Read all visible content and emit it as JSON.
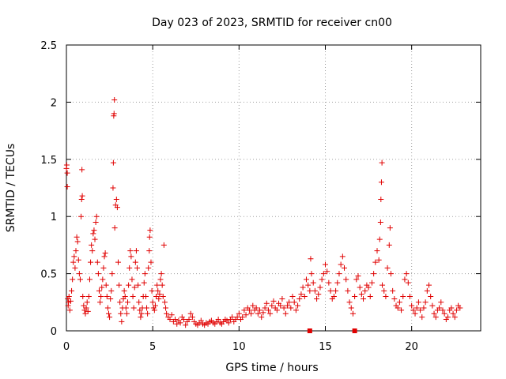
{
  "chart_data": {
    "type": "scatter",
    "title": "Day 023 of 2023, SRMTID for receiver cn00",
    "xlabel": "GPS time / hours",
    "ylabel": "SRMTID / TECUs",
    "xlim": [
      0,
      24
    ],
    "ylim": [
      0,
      2.5
    ],
    "xticks": [
      0,
      5,
      10,
      15,
      20
    ],
    "yticks": [
      0,
      0.5,
      1,
      1.5,
      2,
      2.5
    ],
    "xtick_labels": [
      "0",
      "5",
      "10",
      "15",
      "20"
    ],
    "ytick_labels": [
      "0",
      "0.5",
      "1",
      "1.5",
      "2",
      "2.5"
    ],
    "grid": true,
    "marker": "+",
    "color": "#e00000",
    "series": [
      {
        "name": "SRMTID",
        "points": [
          [
            0.0,
            1.42
          ],
          [
            0.02,
            1.45
          ],
          [
            0.05,
            1.26
          ],
          [
            0.05,
            1.38
          ],
          [
            0.08,
            0.28
          ],
          [
            0.1,
            0.22
          ],
          [
            0.12,
            0.25
          ],
          [
            0.15,
            0.3
          ],
          [
            0.2,
            0.18
          ],
          [
            0.25,
            0.26
          ],
          [
            0.3,
            0.35
          ],
          [
            0.35,
            0.45
          ],
          [
            0.4,
            0.6
          ],
          [
            0.45,
            0.65
          ],
          [
            0.5,
            0.55
          ],
          [
            0.55,
            0.7
          ],
          [
            0.6,
            0.82
          ],
          [
            0.65,
            0.78
          ],
          [
            0.7,
            0.62
          ],
          [
            0.75,
            0.5
          ],
          [
            0.8,
            0.45
          ],
          [
            0.85,
            1.0
          ],
          [
            0.88,
            1.15
          ],
          [
            0.9,
            1.41
          ],
          [
            0.92,
            1.18
          ],
          [
            0.95,
            0.3
          ],
          [
            1.0,
            0.22
          ],
          [
            1.05,
            0.18
          ],
          [
            1.1,
            0.15
          ],
          [
            1.15,
            0.2
          ],
          [
            1.2,
            0.25
          ],
          [
            1.25,
            0.17
          ],
          [
            1.3,
            0.3
          ],
          [
            1.35,
            0.45
          ],
          [
            1.4,
            0.6
          ],
          [
            1.45,
            0.75
          ],
          [
            1.5,
            0.7
          ],
          [
            1.55,
            0.85
          ],
          [
            1.6,
            0.88
          ],
          [
            1.65,
            0.8
          ],
          [
            1.7,
            0.95
          ],
          [
            1.75,
            1.0
          ],
          [
            1.8,
            0.6
          ],
          [
            1.85,
            0.5
          ],
          [
            1.9,
            0.35
          ],
          [
            1.95,
            0.25
          ],
          [
            2.0,
            0.3
          ],
          [
            2.05,
            0.38
          ],
          [
            2.1,
            0.45
          ],
          [
            2.15,
            0.55
          ],
          [
            2.2,
            0.65
          ],
          [
            2.25,
            0.68
          ],
          [
            2.3,
            0.4
          ],
          [
            2.35,
            0.3
          ],
          [
            2.4,
            0.2
          ],
          [
            2.45,
            0.15
          ],
          [
            2.5,
            0.12
          ],
          [
            2.55,
            0.28
          ],
          [
            2.6,
            0.35
          ],
          [
            2.65,
            0.5
          ],
          [
            2.7,
            1.25
          ],
          [
            2.72,
            1.47
          ],
          [
            2.74,
            1.88
          ],
          [
            2.76,
            1.9
          ],
          [
            2.78,
            2.02
          ],
          [
            2.8,
            0.9
          ],
          [
            2.85,
            1.1
          ],
          [
            2.9,
            1.15
          ],
          [
            2.95,
            1.08
          ],
          [
            3.0,
            0.6
          ],
          [
            3.05,
            0.4
          ],
          [
            3.1,
            0.25
          ],
          [
            3.15,
            0.15
          ],
          [
            3.2,
            0.08
          ],
          [
            3.25,
            0.2
          ],
          [
            3.3,
            0.28
          ],
          [
            3.35,
            0.35
          ],
          [
            3.4,
            0.3
          ],
          [
            3.45,
            0.2
          ],
          [
            3.5,
            0.15
          ],
          [
            3.55,
            0.25
          ],
          [
            3.6,
            0.4
          ],
          [
            3.65,
            0.55
          ],
          [
            3.7,
            0.7
          ],
          [
            3.75,
            0.65
          ],
          [
            3.8,
            0.45
          ],
          [
            3.85,
            0.3
          ],
          [
            3.9,
            0.2
          ],
          [
            3.95,
            0.38
          ],
          [
            4.0,
            0.6
          ],
          [
            4.05,
            0.7
          ],
          [
            4.1,
            0.55
          ],
          [
            4.15,
            0.4
          ],
          [
            4.2,
            0.25
          ],
          [
            4.25,
            0.18
          ],
          [
            4.3,
            0.12
          ],
          [
            4.35,
            0.15
          ],
          [
            4.4,
            0.2
          ],
          [
            4.45,
            0.3
          ],
          [
            4.5,
            0.42
          ],
          [
            4.55,
            0.5
          ],
          [
            4.6,
            0.3
          ],
          [
            4.65,
            0.2
          ],
          [
            4.7,
            0.15
          ],
          [
            4.75,
            0.55
          ],
          [
            4.8,
            0.7
          ],
          [
            4.82,
            0.82
          ],
          [
            4.85,
            0.88
          ],
          [
            4.9,
            0.6
          ],
          [
            4.95,
            0.35
          ],
          [
            5.0,
            0.25
          ],
          [
            5.05,
            0.2
          ],
          [
            5.1,
            0.18
          ],
          [
            5.15,
            0.22
          ],
          [
            5.2,
            0.3
          ],
          [
            5.25,
            0.4
          ],
          [
            5.3,
            0.35
          ],
          [
            5.35,
            0.28
          ],
          [
            5.4,
            0.32
          ],
          [
            5.45,
            0.45
          ],
          [
            5.5,
            0.5
          ],
          [
            5.55,
            0.4
          ],
          [
            5.6,
            0.3
          ],
          [
            5.65,
            0.75
          ],
          [
            5.7,
            0.25
          ],
          [
            5.75,
            0.2
          ],
          [
            5.8,
            0.15
          ],
          [
            5.9,
            0.12
          ],
          [
            6.0,
            0.1
          ],
          [
            6.1,
            0.14
          ],
          [
            6.2,
            0.08
          ],
          [
            6.3,
            0.1
          ],
          [
            6.4,
            0.06
          ],
          [
            6.5,
            0.09
          ],
          [
            6.6,
            0.07
          ],
          [
            6.7,
            0.12
          ],
          [
            6.8,
            0.1
          ],
          [
            6.9,
            0.05
          ],
          [
            7.0,
            0.08
          ],
          [
            7.1,
            0.1
          ],
          [
            7.2,
            0.15
          ],
          [
            7.3,
            0.12
          ],
          [
            7.4,
            0.08
          ],
          [
            7.5,
            0.06
          ],
          [
            7.6,
            0.05
          ],
          [
            7.7,
            0.07
          ],
          [
            7.8,
            0.09
          ],
          [
            7.9,
            0.06
          ],
          [
            8.0,
            0.05
          ],
          [
            8.1,
            0.07
          ],
          [
            8.2,
            0.06
          ],
          [
            8.3,
            0.08
          ],
          [
            8.4,
            0.09
          ],
          [
            8.5,
            0.07
          ],
          [
            8.6,
            0.06
          ],
          [
            8.7,
            0.08
          ],
          [
            8.8,
            0.1
          ],
          [
            8.9,
            0.07
          ],
          [
            9.0,
            0.06
          ],
          [
            9.1,
            0.08
          ],
          [
            9.2,
            0.1
          ],
          [
            9.3,
            0.09
          ],
          [
            9.4,
            0.07
          ],
          [
            9.5,
            0.1
          ],
          [
            9.6,
            0.12
          ],
          [
            9.7,
            0.08
          ],
          [
            9.8,
            0.1
          ],
          [
            9.9,
            0.12
          ],
          [
            10.0,
            0.15
          ],
          [
            10.1,
            0.1
          ],
          [
            10.2,
            0.12
          ],
          [
            10.3,
            0.18
          ],
          [
            10.4,
            0.14
          ],
          [
            10.5,
            0.2
          ],
          [
            10.6,
            0.18
          ],
          [
            10.7,
            0.15
          ],
          [
            10.8,
            0.22
          ],
          [
            10.9,
            0.18
          ],
          [
            11.0,
            0.2
          ],
          [
            11.1,
            0.15
          ],
          [
            11.2,
            0.18
          ],
          [
            11.3,
            0.12
          ],
          [
            11.4,
            0.16
          ],
          [
            11.5,
            0.2
          ],
          [
            11.6,
            0.24
          ],
          [
            11.7,
            0.18
          ],
          [
            11.8,
            0.15
          ],
          [
            11.9,
            0.22
          ],
          [
            12.0,
            0.26
          ],
          [
            12.1,
            0.2
          ],
          [
            12.2,
            0.18
          ],
          [
            12.3,
            0.24
          ],
          [
            12.4,
            0.22
          ],
          [
            12.5,
            0.28
          ],
          [
            12.6,
            0.2
          ],
          [
            12.7,
            0.15
          ],
          [
            12.8,
            0.22
          ],
          [
            12.9,
            0.25
          ],
          [
            13.0,
            0.2
          ],
          [
            13.1,
            0.3
          ],
          [
            13.2,
            0.25
          ],
          [
            13.3,
            0.18
          ],
          [
            13.4,
            0.22
          ],
          [
            13.5,
            0.28
          ],
          [
            13.6,
            0.32
          ],
          [
            13.7,
            0.38
          ],
          [
            13.8,
            0.3
          ],
          [
            13.9,
            0.45
          ],
          [
            14.0,
            0.4
          ],
          [
            14.1,
            0.35
          ],
          [
            14.15,
            0.63
          ],
          [
            14.2,
            0.5
          ],
          [
            14.3,
            0.42
          ],
          [
            14.4,
            0.35
          ],
          [
            14.5,
            0.28
          ],
          [
            14.6,
            0.32
          ],
          [
            14.7,
            0.38
          ],
          [
            14.8,
            0.45
          ],
          [
            14.9,
            0.5
          ],
          [
            15.0,
            0.58
          ],
          [
            15.1,
            0.52
          ],
          [
            15.2,
            0.42
          ],
          [
            15.3,
            0.35
          ],
          [
            15.4,
            0.28
          ],
          [
            15.5,
            0.3
          ],
          [
            15.6,
            0.35
          ],
          [
            15.7,
            0.42
          ],
          [
            15.8,
            0.5
          ],
          [
            15.9,
            0.58
          ],
          [
            16.0,
            0.65
          ],
          [
            16.1,
            0.55
          ],
          [
            16.2,
            0.45
          ],
          [
            16.3,
            0.35
          ],
          [
            16.4,
            0.25
          ],
          [
            16.5,
            0.2
          ],
          [
            16.6,
            0.15
          ],
          [
            16.7,
            0.3
          ],
          [
            16.8,
            0.45
          ],
          [
            16.9,
            0.48
          ],
          [
            17.0,
            0.38
          ],
          [
            17.1,
            0.32
          ],
          [
            17.2,
            0.28
          ],
          [
            17.3,
            0.35
          ],
          [
            17.4,
            0.4
          ],
          [
            17.5,
            0.38
          ],
          [
            17.6,
            0.3
          ],
          [
            17.7,
            0.42
          ],
          [
            17.8,
            0.5
          ],
          [
            17.9,
            0.6
          ],
          [
            18.0,
            0.7
          ],
          [
            18.1,
            0.62
          ],
          [
            18.15,
            0.8
          ],
          [
            18.2,
            0.95
          ],
          [
            18.22,
            1.15
          ],
          [
            18.25,
            1.3
          ],
          [
            18.28,
            1.47
          ],
          [
            18.3,
            0.4
          ],
          [
            18.4,
            0.35
          ],
          [
            18.5,
            0.3
          ],
          [
            18.6,
            0.55
          ],
          [
            18.7,
            0.75
          ],
          [
            18.75,
            0.9
          ],
          [
            18.8,
            0.5
          ],
          [
            18.9,
            0.35
          ],
          [
            19.0,
            0.28
          ],
          [
            19.1,
            0.22
          ],
          [
            19.2,
            0.2
          ],
          [
            19.3,
            0.25
          ],
          [
            19.4,
            0.18
          ],
          [
            19.5,
            0.3
          ],
          [
            19.6,
            0.45
          ],
          [
            19.7,
            0.5
          ],
          [
            19.8,
            0.42
          ],
          [
            19.9,
            0.3
          ],
          [
            20.0,
            0.22
          ],
          [
            20.1,
            0.18
          ],
          [
            20.2,
            0.15
          ],
          [
            20.3,
            0.2
          ],
          [
            20.4,
            0.25
          ],
          [
            20.5,
            0.18
          ],
          [
            20.6,
            0.12
          ],
          [
            20.7,
            0.2
          ],
          [
            20.8,
            0.25
          ],
          [
            20.9,
            0.35
          ],
          [
            21.0,
            0.4
          ],
          [
            21.1,
            0.3
          ],
          [
            21.2,
            0.22
          ],
          [
            21.3,
            0.15
          ],
          [
            21.4,
            0.12
          ],
          [
            21.5,
            0.18
          ],
          [
            21.6,
            0.2
          ],
          [
            21.7,
            0.25
          ],
          [
            21.8,
            0.18
          ],
          [
            21.9,
            0.15
          ],
          [
            22.0,
            0.1
          ],
          [
            22.1,
            0.12
          ],
          [
            22.2,
            0.18
          ],
          [
            22.3,
            0.2
          ],
          [
            22.4,
            0.15
          ],
          [
            22.5,
            0.12
          ],
          [
            22.6,
            0.18
          ],
          [
            22.7,
            0.22
          ],
          [
            22.8,
            0.2
          ]
        ]
      }
    ],
    "highlight_squares": [
      [
        14.1,
        0.0
      ],
      [
        16.7,
        0.0
      ]
    ]
  }
}
